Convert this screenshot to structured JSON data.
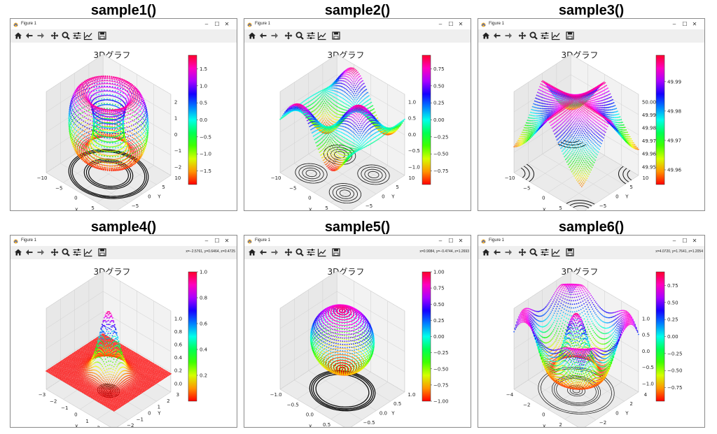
{
  "panels": [
    {
      "heading": "sample1()",
      "window_title": "Figure 1",
      "coords": "",
      "chart_data": {
        "type": "surface3d",
        "title": "3Dグラフ",
        "xlabel": "X",
        "ylabel": "Y",
        "xticks": [
          "−10",
          "−5",
          "0",
          "5",
          "10"
        ],
        "yticks": [
          "−10",
          "−5",
          "0",
          "5",
          "10"
        ],
        "zticks": [
          "−2",
          "−1",
          "0",
          "1",
          "2"
        ],
        "colorbar": {
          "min": -1.9,
          "max": 1.9,
          "ticks": [
            "1.5",
            "1.0",
            "0.5",
            "0.0",
            "−0.5",
            "−1.0",
            "−1.5"
          ]
        },
        "shape": "torus"
      }
    },
    {
      "heading": "sample2()",
      "window_title": "Figure 1",
      "coords": "",
      "chart_data": {
        "type": "surface3d",
        "title": "3Dグラフ",
        "xlabel": "X",
        "ylabel": "Y",
        "xticks": [
          "−10",
          "−5",
          "0",
          "5",
          "10"
        ],
        "yticks": [
          "−10",
          "−5",
          "0",
          "5",
          "10"
        ],
        "zticks": [
          "−1.0",
          "−0.5",
          "0.0",
          "0.5",
          "1.0"
        ],
        "colorbar": {
          "min": -0.95,
          "max": 0.95,
          "ticks": [
            "0.75",
            "0.50",
            "0.25",
            "0.00",
            "−0.25",
            "−0.50",
            "−0.75"
          ]
        },
        "shape": "waves"
      }
    },
    {
      "heading": "sample3()",
      "window_title": "Figure 1",
      "coords": "",
      "chart_data": {
        "type": "surface3d",
        "title": "3Dグラフ",
        "xlabel": "X",
        "ylabel": "Y",
        "xticks": [
          "−10",
          "−5",
          "0",
          "5",
          "10"
        ],
        "yticks": [
          "−10",
          "−5",
          "0",
          "5",
          "10"
        ],
        "zticks": [
          "49.95",
          "49.96",
          "49.97",
          "49.98",
          "49.99",
          "50.00"
        ],
        "colorbar": {
          "min": 49.955,
          "max": 49.999,
          "ticks": [
            "49.99",
            "49.98",
            "49.97",
            "49.96"
          ]
        },
        "shape": "saddle"
      }
    },
    {
      "heading": "sample4()",
      "window_title": "Figure 1",
      "coords": "x=−2.5761, y=0.6464, z=0.4725",
      "chart_data": {
        "type": "surface3d",
        "title": "3Dグラフ",
        "xlabel": "X",
        "ylabel": "Y",
        "xticks": [
          "−3",
          "−2",
          "−1",
          "0",
          "1",
          "2",
          "3"
        ],
        "yticks": [
          "−3",
          "−2",
          "−1",
          "0",
          "1",
          "2",
          "3"
        ],
        "zticks": [
          "0.0",
          "0.2",
          "0.4",
          "0.6",
          "0.8",
          "1.0"
        ],
        "colorbar": {
          "min": 0.0,
          "max": 1.0,
          "ticks": [
            "1.0",
            "0.8",
            "0.6",
            "0.4",
            "0.2"
          ]
        },
        "shape": "gaussian"
      }
    },
    {
      "heading": "sample5()",
      "window_title": "Figure 1",
      "coords": "x=0.9084, y=−0.4744, z=1.2693",
      "chart_data": {
        "type": "surface3d",
        "title": "3Dグラフ",
        "xlabel": "X",
        "ylabel": "Y",
        "xticks": [
          "−1.0",
          "−0.5",
          "0.0",
          "0.5",
          "1.0"
        ],
        "yticks": [
          "−1.0",
          "−0.5",
          "0.0",
          "0.5",
          "1.0"
        ],
        "zticks": [],
        "colorbar": {
          "min": -1.0,
          "max": 1.0,
          "ticks": [
            "1.00",
            "0.75",
            "0.50",
            "0.25",
            "0.00",
            "−0.25",
            "−0.50",
            "−0.75",
            "−1.00"
          ]
        },
        "shape": "sphere"
      }
    },
    {
      "heading": "sample6()",
      "window_title": "Figure 1",
      "coords": "x=4.0720, y=1.7641, z=1.2054",
      "chart_data": {
        "type": "surface3d",
        "title": "3Dグラフ",
        "xlabel": "X",
        "ylabel": "Y",
        "xticks": [
          "−4",
          "−2",
          "0",
          "2",
          "4"
        ],
        "yticks": [
          "−4",
          "−2",
          "0",
          "2",
          "4"
        ],
        "zticks": [
          "−1.0",
          "−0.5",
          "0.0",
          "0.5",
          "1.0"
        ],
        "colorbar": {
          "min": -0.95,
          "max": 0.95,
          "ticks": [
            "0.75",
            "0.50",
            "0.25",
            "0.00",
            "−0.25",
            "−0.50",
            "−0.75"
          ]
        },
        "shape": "ripple"
      }
    }
  ],
  "toolbar_icons": [
    "home-icon",
    "back-arrow-icon",
    "forward-arrow-icon",
    "pan-icon",
    "zoom-icon",
    "configure-subplots-icon",
    "edit-axis-icon",
    "save-icon"
  ],
  "colors": {
    "frame": "#8a8a8a",
    "toolbar": "#efefef",
    "pane": "#f2f2f2",
    "grid": "#d0d0d0",
    "contour": "#111111"
  }
}
